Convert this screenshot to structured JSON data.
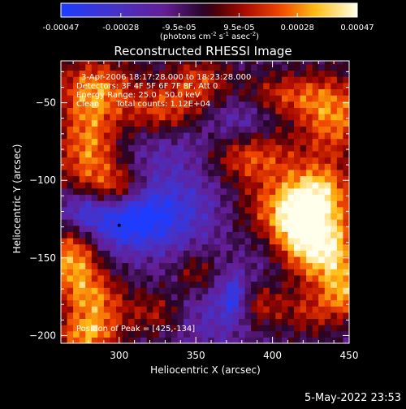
{
  "chart_data": {
    "type": "heatmap",
    "title": "Reconstructed RHESSI Image",
    "xlabel": "Heliocentric X (arcsec)",
    "ylabel": "Heliocentric Y (arcsec)",
    "xlim": [
      262,
      450
    ],
    "ylim": [
      -205,
      -23
    ],
    "x_ticks": [
      300,
      350,
      400,
      450
    ],
    "y_ticks": [
      -50,
      -100,
      -150,
      -200
    ],
    "colorbar": {
      "tick_labels": [
        "-0.00047",
        "-0.00028",
        "-9.5e-05",
        "9.5e-05",
        "0.00028",
        "0.00047"
      ],
      "tick_values": [
        -0.00047,
        -0.00028,
        -9.5e-05,
        9.5e-05,
        0.00028,
        0.00047
      ],
      "range": [
        -0.00047,
        0.00047
      ],
      "unit_prefix": "(photons cm",
      "unit_exp1": "-2",
      "unit_mid": " s",
      "unit_exp2": "-1",
      "unit_mid2": " asec",
      "unit_exp3": "-2",
      "unit_suffix": ")"
    },
    "annotations": {
      "time_range": "3-Apr-2006 18:17:28.000 to 18:23:28.000",
      "detectors": "Detectors: 3F 4F 5F 6F 7F 8F, Att 0",
      "energy": "Energy Range: 25.0 - 50.0 keV",
      "algorithm": "Clean",
      "total_counts": "Total counts: 1.12E+04",
      "peak": "Position of Peak = [425,-134]"
    },
    "peak_position": [
      425,
      -134
    ],
    "min_marker": [
      300,
      -129
    ],
    "blobs": [
      {
        "x": 425,
        "y": -134,
        "amp": 0.00047,
        "sx": 18,
        "sy": 16
      },
      {
        "x": 408,
        "y": -118,
        "amp": 0.00036,
        "sx": 20,
        "sy": 15
      },
      {
        "x": 440,
        "y": -155,
        "amp": 0.0003,
        "sx": 16,
        "sy": 14
      },
      {
        "x": 432,
        "y": -105,
        "amp": 0.0003,
        "sx": 14,
        "sy": 12
      },
      {
        "x": 385,
        "y": -85,
        "amp": 0.0003,
        "sx": 22,
        "sy": 12
      },
      {
        "x": 440,
        "y": -60,
        "amp": 0.00034,
        "sx": 16,
        "sy": 18
      },
      {
        "x": 410,
        "y": -45,
        "amp": 0.00024,
        "sx": 20,
        "sy": 10
      },
      {
        "x": 330,
        "y": -55,
        "amp": 0.0003,
        "sx": 18,
        "sy": 12
      },
      {
        "x": 352,
        "y": -35,
        "amp": 0.00024,
        "sx": 14,
        "sy": 10
      },
      {
        "x": 285,
        "y": -40,
        "amp": 0.0003,
        "sx": 18,
        "sy": 14
      },
      {
        "x": 280,
        "y": -80,
        "amp": 0.00036,
        "sx": 14,
        "sy": 24
      },
      {
        "x": 300,
        "y": -105,
        "amp": 0.00028,
        "sx": 12,
        "sy": 10
      },
      {
        "x": 270,
        "y": -150,
        "amp": 0.0004,
        "sx": 12,
        "sy": 18
      },
      {
        "x": 285,
        "y": -180,
        "amp": 0.00032,
        "sx": 14,
        "sy": 14
      },
      {
        "x": 278,
        "y": -200,
        "amp": 0.0003,
        "sx": 14,
        "sy": 8
      },
      {
        "x": 325,
        "y": -185,
        "amp": 0.0002,
        "sx": 14,
        "sy": 10
      },
      {
        "x": 350,
        "y": -160,
        "amp": 0.0002,
        "sx": 10,
        "sy": 10
      },
      {
        "x": 392,
        "y": -180,
        "amp": 0.00024,
        "sx": 12,
        "sy": 10
      },
      {
        "x": 425,
        "y": -185,
        "amp": 0.0002,
        "sx": 12,
        "sy": 10
      },
      {
        "x": 445,
        "y": -175,
        "amp": 0.00026,
        "sx": 8,
        "sy": 10
      },
      {
        "x": 305,
        "y": -125,
        "amp": -0.0004,
        "sx": 22,
        "sy": 14
      },
      {
        "x": 275,
        "y": -120,
        "amp": -0.00025,
        "sx": 10,
        "sy": 10
      },
      {
        "x": 340,
        "y": -115,
        "amp": -0.00018,
        "sx": 24,
        "sy": 22
      },
      {
        "x": 360,
        "y": -185,
        "amp": -0.00016,
        "sx": 20,
        "sy": 16
      },
      {
        "x": 375,
        "y": -175,
        "amp": -0.00028,
        "sx": 6,
        "sy": 10
      },
      {
        "x": 340,
        "y": -75,
        "amp": -0.00012,
        "sx": 24,
        "sy": 14
      },
      {
        "x": 380,
        "y": -60,
        "amp": -0.00014,
        "sx": 14,
        "sy": 10
      },
      {
        "x": 395,
        "y": -140,
        "amp": -0.0001,
        "sx": 10,
        "sy": 20
      }
    ]
  },
  "footer": {
    "timestamp": "5-May-2022 23:53"
  }
}
